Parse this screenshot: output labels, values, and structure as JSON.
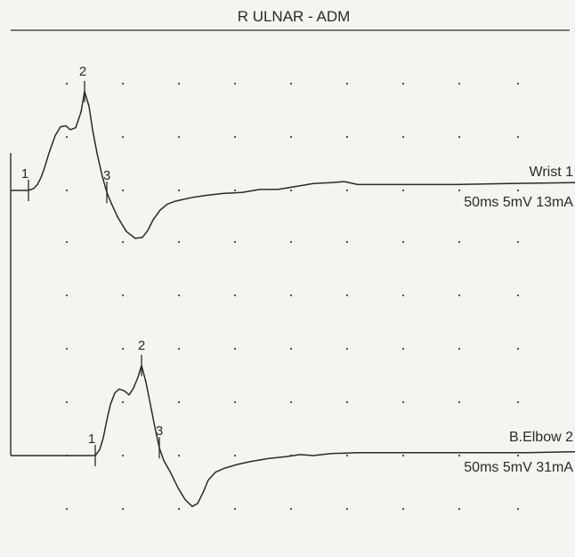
{
  "chart_data": {
    "type": "line",
    "title": "R ULNAR - ADM",
    "grid": "dotted",
    "traces": [
      {
        "name": "Wrist 1",
        "settings": "50ms 5mV 13mA",
        "markers": [
          "1",
          "2",
          "3"
        ],
        "x": [
          0,
          20,
          26,
          30,
          34,
          38,
          43,
          50,
          56,
          62,
          67,
          73,
          79,
          83,
          88,
          92,
          97,
          103,
          108,
          113,
          120,
          130,
          140,
          148,
          154,
          160,
          168,
          176,
          185,
          195,
          205,
          220,
          240,
          260,
          280,
          300,
          320,
          340,
          360,
          375,
          390,
          420,
          460,
          500,
          560,
          640
        ],
        "y": [
          0,
          0,
          2,
          6,
          13,
          23,
          38,
          56,
          65,
          66,
          62,
          64,
          80,
          101,
          86,
          62,
          38,
          14,
          -2,
          -13,
          -27,
          -42,
          -49,
          -48,
          -41,
          -30,
          -20,
          -14,
          -11,
          -9,
          -7,
          -5,
          -3,
          -2,
          1,
          1,
          4,
          7,
          8,
          9,
          6,
          6,
          6,
          6,
          7,
          8
        ]
      },
      {
        "name": "B.Elbow 2",
        "settings": "50ms 5mV 31mA",
        "markers": [
          "1",
          "2",
          "3"
        ],
        "x": [
          0,
          50,
          95,
          100,
          104,
          108,
          112,
          117,
          122,
          128,
          133,
          138,
          143,
          147,
          152,
          157,
          162,
          167,
          172,
          180,
          188,
          196,
          204,
          210,
          216,
          222,
          230,
          240,
          255,
          270,
          290,
          310,
          325,
          340,
          360,
          390,
          430,
          470,
          520,
          580,
          640
        ],
        "y": [
          0,
          0,
          0,
          6,
          18,
          36,
          52,
          64,
          68,
          66,
          62,
          69,
          80,
          92,
          75,
          52,
          29,
          8,
          -5,
          -18,
          -33,
          -45,
          -52,
          -49,
          -38,
          -25,
          -17,
          -13,
          -9,
          -6,
          -3,
          -1,
          1,
          0,
          2,
          3,
          3,
          3,
          3,
          3,
          4
        ]
      }
    ],
    "xlabel": "",
    "ylabel": ""
  }
}
